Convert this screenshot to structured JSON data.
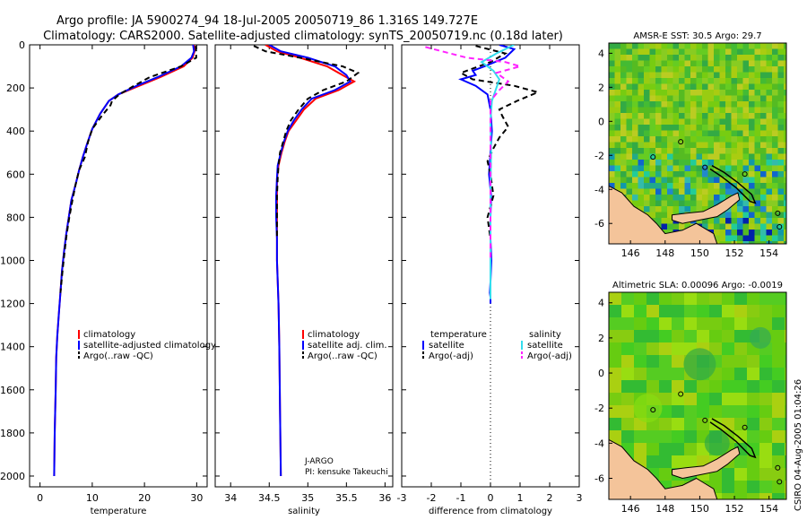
{
  "title": {
    "line1": "Argo profile: JA 5900274_94 18-Jul-2005 20050719_86 1.316S 149.727E",
    "line2": "Climatology: CARS2000. Satellite-adjusted climatology: synTS_20050719.nc (0.18d later)"
  },
  "colors": {
    "climatology": "#ff0000",
    "satellite": "#0000ff",
    "argo": "#000000",
    "sal_satellite": "#33ddee",
    "sal_argo": "#ff22ff",
    "land": "#f4c49a",
    "sea": "#55cc11"
  },
  "chart_data": [
    {
      "type": "line",
      "xlabel": "temperature",
      "ylabel": "",
      "xlim": [
        -2,
        32
      ],
      "ylim": [
        2050,
        0
      ],
      "xticks": [
        "0",
        "10",
        "20",
        "30"
      ],
      "yticks": [
        "0",
        "200",
        "400",
        "600",
        "800",
        "1000",
        "1200",
        "1400",
        "1600",
        "1800",
        "2000"
      ],
      "legend": [
        "climatology",
        "satellite-adjusted climatology",
        "Argo(..raw -QC)"
      ],
      "series": [
        {
          "name": "climatology",
          "color": "#ff0000",
          "dashed": false,
          "x": [
            29.5,
            29.6,
            29.2,
            27.5,
            23,
            19,
            15,
            13.2,
            11.5,
            10,
            9,
            8.2,
            7.5,
            6.8,
            6,
            5.5,
            5,
            4.6,
            4.2,
            3.9,
            3.6,
            3.3,
            3.1,
            3.0,
            2.8,
            2.7
          ],
          "y": [
            0,
            30,
            60,
            100,
            150,
            190,
            230,
            260,
            320,
            390,
            460,
            520,
            580,
            650,
            720,
            800,
            880,
            960,
            1050,
            1150,
            1250,
            1350,
            1450,
            1600,
            1800,
            2000
          ]
        },
        {
          "name": "satellite-adjusted climatology",
          "color": "#0000ff",
          "dashed": false,
          "x": [
            29.3,
            29.5,
            29,
            27,
            22.5,
            18.5,
            15,
            13.2,
            11.5,
            10,
            9,
            8.2,
            7.5,
            6.8,
            6,
            5.5,
            5,
            4.6,
            4.2,
            3.9,
            3.6,
            3.3,
            3.1,
            3.0,
            2.8,
            2.7
          ],
          "y": [
            0,
            30,
            60,
            100,
            150,
            190,
            230,
            260,
            320,
            390,
            460,
            520,
            580,
            650,
            720,
            800,
            880,
            960,
            1050,
            1150,
            1250,
            1350,
            1450,
            1600,
            1800,
            2000
          ]
        },
        {
          "name": "Argo(..raw -QC)",
          "color": "#000000",
          "dashed": true,
          "x": [
            29.8,
            29.9,
            29.9,
            27,
            21,
            18,
            15.2,
            13.8,
            13.5,
            11.8,
            10,
            9.2,
            8.6,
            7.5,
            6.8,
            6.2,
            5.6,
            5.1,
            4.7,
            4.3,
            3.9
          ],
          "y": [
            5,
            30,
            60,
            100,
            150,
            190,
            230,
            260,
            280,
            330,
            390,
            450,
            520,
            580,
            650,
            720,
            800,
            880,
            960,
            1050,
            1150
          ]
        }
      ]
    },
    {
      "type": "line",
      "xlabel": "salinity",
      "xlim": [
        33.8,
        36.1
      ],
      "ylim": [
        2050,
        0
      ],
      "xticks": [
        "34",
        "34.5",
        "35",
        "35.5",
        "36"
      ],
      "legend": [
        "climatology",
        "satellite adj. clim.",
        "Argo(..raw -QC)"
      ],
      "annotation": [
        "J-ARGO",
        "PI: kensuke Takeuchi"
      ],
      "series": [
        {
          "name": "climatology",
          "color": "#ff0000",
          "dashed": false,
          "x": [
            34.45,
            34.6,
            34.9,
            35.25,
            35.45,
            35.6,
            35.4,
            35.1,
            34.95,
            34.85,
            34.75,
            34.7,
            34.66,
            34.62,
            34.6,
            34.6,
            34.6,
            34.6,
            34.6,
            34.62,
            34.63,
            34.64,
            34.65
          ],
          "y": [
            0,
            30,
            60,
            100,
            140,
            170,
            210,
            250,
            300,
            350,
            400,
            450,
            500,
            560,
            620,
            700,
            800,
            900,
            1000,
            1200,
            1400,
            1700,
            2000
          ]
        },
        {
          "name": "satellite adj. clim.",
          "color": "#0000ff",
          "dashed": false,
          "x": [
            34.5,
            34.65,
            35.0,
            35.35,
            35.5,
            35.55,
            35.35,
            35.05,
            34.92,
            34.82,
            34.74,
            34.69,
            34.65,
            34.61,
            34.6,
            34.59,
            34.59,
            34.6,
            34.6,
            34.62,
            34.63,
            34.64,
            34.65
          ],
          "y": [
            0,
            30,
            60,
            100,
            140,
            170,
            210,
            250,
            300,
            350,
            400,
            450,
            500,
            560,
            620,
            700,
            800,
            900,
            1000,
            1200,
            1400,
            1700,
            2000
          ]
        },
        {
          "name": "Argo(..raw -QC)",
          "color": "#000000",
          "dashed": true,
          "x": [
            34.3,
            34.45,
            34.9,
            35.45,
            35.65,
            35.5,
            35.2,
            35.0,
            34.88,
            34.78,
            34.72,
            34.68,
            34.64,
            34.62,
            34.61,
            34.6,
            34.6,
            34.6
          ],
          "y": [
            5,
            30,
            60,
            100,
            130,
            170,
            210,
            250,
            300,
            350,
            400,
            450,
            500,
            560,
            620,
            700,
            800,
            900
          ]
        }
      ]
    },
    {
      "type": "line",
      "xlabel": "difference from climatology",
      "xlim": [
        -3,
        3
      ],
      "ylim": [
        2050,
        0
      ],
      "xticks": [
        "-3",
        "-2",
        "-1",
        "0",
        "1",
        "2",
        "3"
      ],
      "legend": [
        "temperature",
        "satellite",
        "Argo(-adj)",
        "salinity",
        "satellite",
        "Argo(-adj)"
      ],
      "series": [
        {
          "name": "temperature satellite",
          "color": "#0000ff",
          "dashed": false,
          "x": [
            0.3,
            0.8,
            0.5,
            -0.2,
            -0.6,
            -0.5,
            -1.0,
            -0.5,
            -0.1,
            0.0,
            0.05,
            0.0,
            -0.05,
            0.02,
            0.0,
            0.0,
            0.03,
            0.0,
            -0.02,
            0.0,
            0.0
          ],
          "y": [
            0,
            20,
            60,
            100,
            120,
            140,
            160,
            190,
            230,
            300,
            400,
            500,
            600,
            700,
            800,
            900,
            1000,
            1100,
            1150,
            1170,
            1200
          ]
        },
        {
          "name": "temperature Argo(-adj)",
          "color": "#000000",
          "dashed": true,
          "x": [
            -0.5,
            0.5,
            0.0,
            -1.0,
            -0.6,
            0.8,
            1.6,
            0.9,
            0.3,
            0.4,
            0.6,
            0.3,
            0.1,
            -0.1,
            0.0,
            0.1,
            -0.1,
            0.0,
            0.0
          ],
          "y": [
            5,
            40,
            80,
            130,
            160,
            190,
            220,
            260,
            300,
            330,
            380,
            430,
            480,
            540,
            600,
            700,
            800,
            900,
            1000
          ]
        },
        {
          "name": "salinity satellite",
          "color": "#33ddee",
          "dashed": false,
          "x": [
            0.8,
            0.2,
            -0.3,
            0.1,
            0.3,
            0.2,
            0.05,
            0.0,
            0.02,
            0.0,
            0.0,
            0.0,
            0.0
          ],
          "y": [
            0,
            40,
            80,
            120,
            160,
            200,
            260,
            350,
            500,
            700,
            900,
            1100,
            1180
          ]
        },
        {
          "name": "salinity Argo(-adj)",
          "color": "#ff22ff",
          "dashed": true,
          "x": [
            -2.2,
            -0.8,
            0.5,
            1.0,
            0.2,
            0.6,
            0.3,
            0.0,
            0.0,
            0.0,
            0.0,
            0.0,
            0.0
          ],
          "y": [
            10,
            60,
            80,
            100,
            130,
            170,
            210,
            260,
            350,
            500,
            700,
            900,
            1000
          ]
        }
      ]
    }
  ],
  "maps": [
    {
      "title": "AMSR-E SST: 30.5 Argo: 29.7",
      "xticks": [
        "146",
        "148",
        "150",
        "152",
        "154"
      ],
      "yticks": [
        "4",
        "2",
        "0",
        "-2",
        "-4",
        "-6"
      ]
    },
    {
      "title": "Altimetric SLA: 0.00096 Argo: -0.0019",
      "xticks": [
        "146",
        "148",
        "150",
        "152",
        "154"
      ],
      "yticks": [
        "4",
        "2",
        "0",
        "-2",
        "-4",
        "-6"
      ]
    }
  ],
  "footer_stamp": "CSIRO 04-Aug-2005 01:04:26"
}
